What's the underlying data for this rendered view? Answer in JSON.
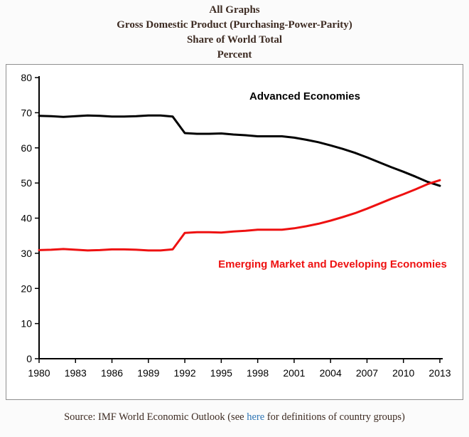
{
  "titles": [
    "All Graphs",
    "Gross Domestic Product (Purchasing-Power-Parity)",
    "Share of World Total",
    "Percent"
  ],
  "chart_data": {
    "type": "line",
    "title": "Gross Domestic Product (Purchasing-Power-Parity) Share of World Total, Percent",
    "xlabel": "",
    "ylabel": "",
    "ylim": [
      0,
      80
    ],
    "yticks": [
      0,
      10,
      20,
      30,
      40,
      50,
      60,
      70,
      80
    ],
    "xticks": [
      1980,
      1983,
      1986,
      1989,
      1992,
      1995,
      1998,
      2001,
      2004,
      2007,
      2010,
      2013
    ],
    "grid": false,
    "legend_position": "in-chart-annotations",
    "x": [
      1980,
      1981,
      1982,
      1983,
      1984,
      1985,
      1986,
      1987,
      1988,
      1989,
      1990,
      1991,
      1992,
      1993,
      1994,
      1995,
      1996,
      1997,
      1998,
      1999,
      2000,
      2001,
      2002,
      2003,
      2004,
      2005,
      2006,
      2007,
      2008,
      2009,
      2010,
      2011,
      2012,
      2013
    ],
    "series": [
      {
        "name": "Advanced Economies",
        "color": "#000000",
        "values": [
          69.1,
          69.0,
          68.8,
          69.0,
          69.2,
          69.1,
          68.9,
          68.9,
          69.0,
          69.2,
          69.2,
          68.9,
          64.2,
          64.0,
          64.0,
          64.1,
          63.8,
          63.6,
          63.3,
          63.3,
          63.3,
          62.9,
          62.3,
          61.6,
          60.7,
          59.7,
          58.6,
          57.3,
          55.9,
          54.5,
          53.2,
          51.8,
          50.3,
          49.2
        ]
      },
      {
        "name": "Emerging Market and Developing Economies",
        "color": "#ee1111",
        "values": [
          30.9,
          31.0,
          31.2,
          31.0,
          30.8,
          30.9,
          31.1,
          31.1,
          31.0,
          30.8,
          30.8,
          31.1,
          35.8,
          36.0,
          36.0,
          35.9,
          36.2,
          36.4,
          36.7,
          36.7,
          36.7,
          37.1,
          37.7,
          38.4,
          39.3,
          40.3,
          41.4,
          42.7,
          44.1,
          45.5,
          46.8,
          48.2,
          49.7,
          50.8
        ]
      }
    ]
  },
  "source": {
    "prefix": "Source: IMF World Economic Outlook (see ",
    "link": "here",
    "suffix": " for definitions of country groups)"
  }
}
